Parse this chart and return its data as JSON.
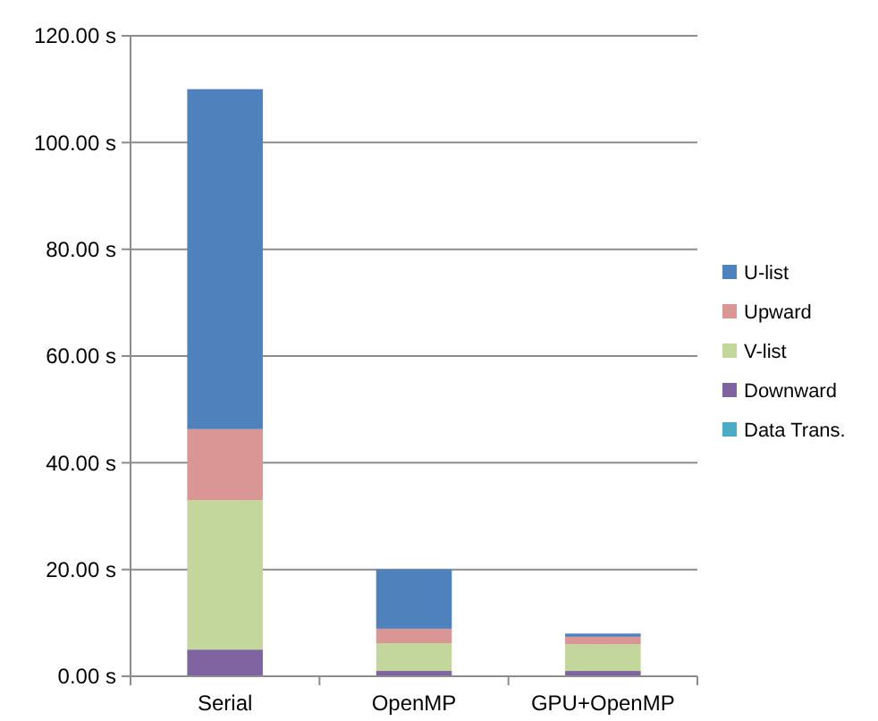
{
  "chart_data": {
    "type": "bar",
    "stacked": true,
    "categories": [
      "Serial",
      "OpenMP",
      "GPU+OpenMP"
    ],
    "series": [
      {
        "name": "Data Trans.",
        "color": "#4bacc6",
        "values": [
          0,
          0,
          0
        ]
      },
      {
        "name": "Downward",
        "color": "#8064a2",
        "values": [
          5,
          1,
          1
        ]
      },
      {
        "name": "V-list",
        "color": "#c3d69b",
        "values": [
          28,
          5.2,
          5
        ]
      },
      {
        "name": "Upward",
        "color": "#d99694",
        "values": [
          13.3,
          2.7,
          1.4
        ]
      },
      {
        "name": "U-list",
        "color": "#4f81bd",
        "values": [
          63.7,
          11.1,
          0.6
        ]
      }
    ],
    "ylim": [
      0,
      120
    ],
    "yticks": [
      {
        "value": 0,
        "label": "0.00 s"
      },
      {
        "value": 20,
        "label": "20.00 s"
      },
      {
        "value": 40,
        "label": "40.00 s"
      },
      {
        "value": 60,
        "label": "60.00 s"
      },
      {
        "value": 80,
        "label": "80.00 s"
      },
      {
        "value": 100,
        "label": "100.00 s"
      },
      {
        "value": 120,
        "label": "120.00 s"
      }
    ],
    "grid": "y",
    "legend": "right"
  }
}
